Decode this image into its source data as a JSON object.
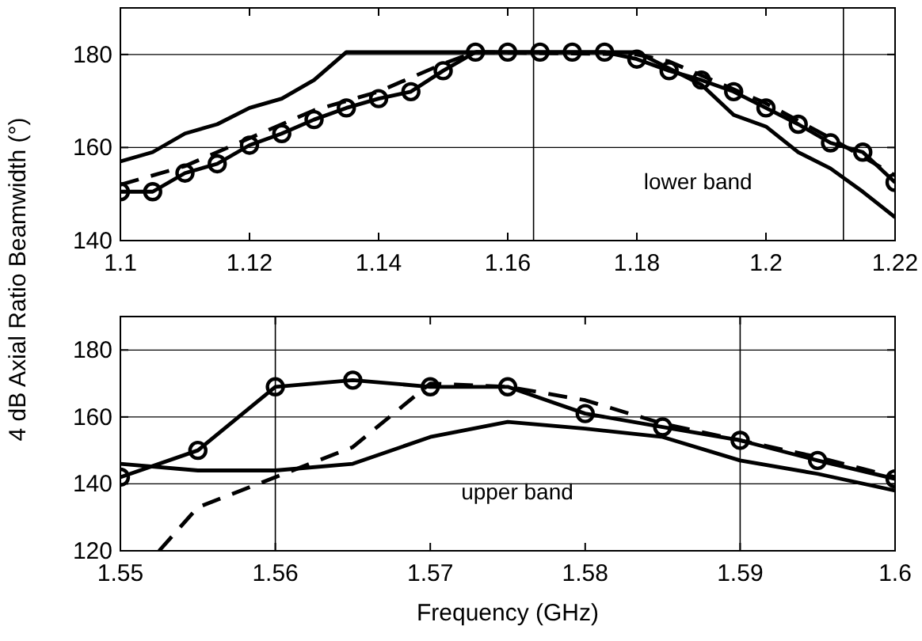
{
  "chart_data": [
    {
      "type": "line",
      "ylabel": "4 dB Axial Ratio Beamwidth (°)",
      "xlim": [
        1.1,
        1.22
      ],
      "ylim": [
        140,
        190
      ],
      "xticks": [
        1.1,
        1.12,
        1.14,
        1.16,
        1.18,
        1.2,
        1.22
      ],
      "yticks": [
        140,
        160,
        180
      ],
      "grid": "y",
      "ref_lines": [
        {
          "axis": "x",
          "value": 1.164
        },
        {
          "axis": "x",
          "value": 1.212
        }
      ],
      "annotations": [
        "lower band"
      ],
      "series": [
        {
          "color": "#000000",
          "marker": "circle",
          "line_style": "solid",
          "x": [
            1.1,
            1.105,
            1.11,
            1.115,
            1.12,
            1.125,
            1.13,
            1.135,
            1.14,
            1.145,
            1.15,
            1.155,
            1.16,
            1.165,
            1.17,
            1.175,
            1.18,
            1.185,
            1.19,
            1.195,
            1.2,
            1.205,
            1.21,
            1.215,
            1.22
          ],
          "values": [
            150.5,
            150.5,
            154.5,
            156.5,
            160.5,
            163,
            166,
            168.5,
            170.5,
            172,
            176.5,
            180.5,
            180.5,
            180.5,
            180.5,
            180.5,
            179,
            176.5,
            174.5,
            172,
            168.5,
            165,
            161,
            159,
            152.5
          ]
        },
        {
          "color": "#000000",
          "marker": "none",
          "line_style": "solid",
          "x": [
            1.1,
            1.105,
            1.11,
            1.115,
            1.12,
            1.125,
            1.13,
            1.135,
            1.18,
            1.185,
            1.19,
            1.195,
            1.2,
            1.205,
            1.21,
            1.215,
            1.22
          ],
          "values": [
            157,
            159,
            163,
            165,
            168.5,
            170.5,
            174.5,
            180.5,
            180.5,
            177,
            173.5,
            167,
            164.5,
            159,
            155.5,
            150.5,
            145
          ]
        },
        {
          "color": "#000000",
          "marker": "none",
          "line_style": "dashed",
          "x": [
            1.1,
            1.11,
            1.12,
            1.13,
            1.14,
            1.145,
            1.15,
            1.155,
            1.18,
            1.185,
            1.19,
            1.2,
            1.21,
            1.22
          ],
          "values": [
            152,
            156,
            162,
            168,
            172,
            175,
            178,
            180.5,
            180,
            178.5,
            175.5,
            169.5,
            162,
            154
          ]
        }
      ]
    },
    {
      "type": "line",
      "xlabel": "Frequency (GHz)",
      "xlim": [
        1.55,
        1.6
      ],
      "ylim": [
        120,
        190
      ],
      "xticks": [
        1.55,
        1.56,
        1.57,
        1.58,
        1.59,
        1.6
      ],
      "yticks": [
        120,
        140,
        160,
        180
      ],
      "grid": "y",
      "ref_lines": [
        {
          "axis": "x",
          "value": 1.56
        },
        {
          "axis": "x",
          "value": 1.59
        }
      ],
      "annotations": [
        "upper band"
      ],
      "series": [
        {
          "color": "#000000",
          "marker": "circle",
          "line_style": "solid",
          "x": [
            1.55,
            1.555,
            1.56,
            1.565,
            1.57,
            1.575,
            1.58,
            1.585,
            1.59,
            1.595,
            1.6
          ],
          "values": [
            142,
            150,
            169,
            171,
            169,
            169,
            161,
            157,
            153,
            147,
            141.5
          ]
        },
        {
          "color": "#000000",
          "marker": "none",
          "line_style": "solid",
          "x": [
            1.55,
            1.555,
            1.56,
            1.565,
            1.57,
            1.575,
            1.58,
            1.585,
            1.59,
            1.595,
            1.6
          ],
          "values": [
            146,
            144,
            144,
            146,
            154,
            158.5,
            156.5,
            154,
            147,
            143,
            138
          ]
        },
        {
          "color": "#000000",
          "marker": "none",
          "line_style": "dashed",
          "x": [
            1.5525,
            1.555,
            1.56,
            1.565,
            1.57,
            1.575,
            1.58,
            1.585,
            1.59,
            1.595,
            1.6
          ],
          "values": [
            120,
            133,
            142,
            151,
            170,
            169,
            165,
            158,
            153,
            148,
            142
          ]
        }
      ]
    }
  ]
}
